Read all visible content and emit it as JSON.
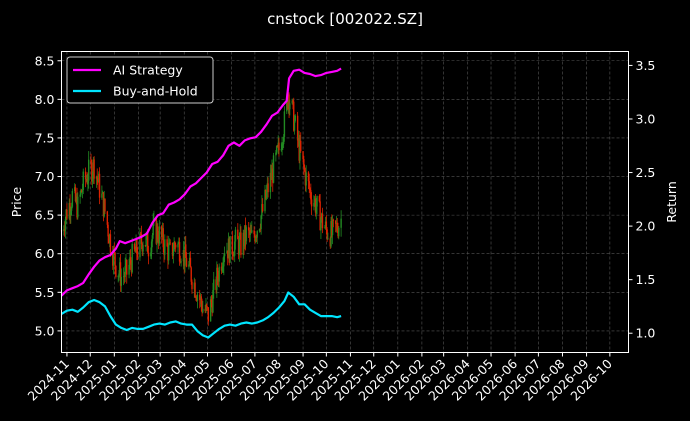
{
  "chart_data": {
    "type": "line",
    "title": "cnstock [002022.SZ]",
    "ylabel_left": "Price",
    "ylabel_right": "Return",
    "background": "#000000",
    "grid": true,
    "legend_position": "top-left",
    "x_ticks": [
      "2024-11",
      "2024-12",
      "2025-01",
      "2025-02",
      "2025-03",
      "2025-04",
      "2025-05",
      "2025-06",
      "2025-07",
      "2025-08",
      "2025-09",
      "2025-10",
      "2025-11",
      "2025-12",
      "2026-01",
      "2026-02",
      "2026-03",
      "2026-04",
      "2026-05",
      "2026-06",
      "2026-07",
      "2026-08",
      "2026-09",
      "2026-10"
    ],
    "x_range": [
      "2024-10-25",
      "2026-10-25"
    ],
    "y_left": {
      "range": [
        4.72,
        8.62
      ],
      "ticks": [
        "5.0",
        "5.5",
        "6.0",
        "6.5",
        "7.0",
        "7.5",
        "8.0",
        "8.5"
      ]
    },
    "y_right": {
      "range": [
        0.82,
        3.63
      ],
      "ticks": [
        "1.0",
        "1.5",
        "2.0",
        "2.5",
        "3.0",
        "3.5"
      ]
    },
    "colors": {
      "ai": "#ff00ff",
      "bh": "#00e5ff",
      "up": "#228B22",
      "down": "#DD2200"
    },
    "series": [
      {
        "name": "AI Strategy",
        "axis": "right",
        "points": [
          [
            "2024-10-25",
            1.35
          ],
          [
            "2024-11-01",
            1.4
          ],
          [
            "2024-11-08",
            1.42
          ],
          [
            "2024-11-15",
            1.44
          ],
          [
            "2024-11-22",
            1.47
          ],
          [
            "2024-11-29",
            1.55
          ],
          [
            "2024-12-06",
            1.62
          ],
          [
            "2024-12-13",
            1.68
          ],
          [
            "2024-12-20",
            1.71
          ],
          [
            "2024-12-27",
            1.73
          ],
          [
            "2025-01-03",
            1.79
          ],
          [
            "2025-01-08",
            1.86
          ],
          [
            "2025-01-15",
            1.84
          ],
          [
            "2025-01-22",
            1.86
          ],
          [
            "2025-01-29",
            1.88
          ],
          [
            "2025-02-05",
            1.9
          ],
          [
            "2025-02-12",
            1.93
          ],
          [
            "2025-02-19",
            2.03
          ],
          [
            "2025-02-26",
            2.1
          ],
          [
            "2025-03-05",
            2.12
          ],
          [
            "2025-03-12",
            2.2
          ],
          [
            "2025-03-19",
            2.22
          ],
          [
            "2025-03-26",
            2.25
          ],
          [
            "2025-04-02",
            2.3
          ],
          [
            "2025-04-09",
            2.37
          ],
          [
            "2025-04-16",
            2.4
          ],
          [
            "2025-04-23",
            2.45
          ],
          [
            "2025-04-30",
            2.5
          ],
          [
            "2025-05-07",
            2.58
          ],
          [
            "2025-05-14",
            2.6
          ],
          [
            "2025-05-21",
            2.66
          ],
          [
            "2025-05-28",
            2.75
          ],
          [
            "2025-06-04",
            2.78
          ],
          [
            "2025-06-11",
            2.75
          ],
          [
            "2025-06-18",
            2.8
          ],
          [
            "2025-06-25",
            2.82
          ],
          [
            "2025-07-02",
            2.83
          ],
          [
            "2025-07-09",
            2.88
          ],
          [
            "2025-07-16",
            2.95
          ],
          [
            "2025-07-23",
            3.03
          ],
          [
            "2025-07-30",
            3.06
          ],
          [
            "2025-08-06",
            3.13
          ],
          [
            "2025-08-11",
            3.17
          ],
          [
            "2025-08-14",
            3.38
          ],
          [
            "2025-08-20",
            3.45
          ],
          [
            "2025-08-27",
            3.46
          ],
          [
            "2025-09-03",
            3.43
          ],
          [
            "2025-09-10",
            3.42
          ],
          [
            "2025-09-17",
            3.4
          ],
          [
            "2025-09-24",
            3.41
          ],
          [
            "2025-10-01",
            3.43
          ],
          [
            "2025-10-08",
            3.44
          ],
          [
            "2025-10-15",
            3.45
          ],
          [
            "2025-10-20",
            3.47
          ]
        ]
      },
      {
        "name": "Buy-and-Hold",
        "axis": "right",
        "points": [
          [
            "2024-10-25",
            1.18
          ],
          [
            "2024-11-01",
            1.21
          ],
          [
            "2024-11-08",
            1.22
          ],
          [
            "2024-11-15",
            1.2
          ],
          [
            "2024-11-22",
            1.24
          ],
          [
            "2024-11-29",
            1.29
          ],
          [
            "2024-12-06",
            1.31
          ],
          [
            "2024-12-13",
            1.29
          ],
          [
            "2024-12-20",
            1.25
          ],
          [
            "2024-12-27",
            1.16
          ],
          [
            "2025-01-03",
            1.08
          ],
          [
            "2025-01-10",
            1.05
          ],
          [
            "2025-01-17",
            1.03
          ],
          [
            "2025-01-24",
            1.05
          ],
          [
            "2025-01-31",
            1.04
          ],
          [
            "2025-02-07",
            1.04
          ],
          [
            "2025-02-14",
            1.06
          ],
          [
            "2025-02-21",
            1.08
          ],
          [
            "2025-02-28",
            1.09
          ],
          [
            "2025-03-07",
            1.08
          ],
          [
            "2025-03-14",
            1.1
          ],
          [
            "2025-03-21",
            1.11
          ],
          [
            "2025-03-28",
            1.09
          ],
          [
            "2025-04-04",
            1.08
          ],
          [
            "2025-04-11",
            1.08
          ],
          [
            "2025-04-18",
            1.02
          ],
          [
            "2025-04-25",
            0.98
          ],
          [
            "2025-05-02",
            0.96
          ],
          [
            "2025-05-09",
            1.0
          ],
          [
            "2025-05-16",
            1.04
          ],
          [
            "2025-05-23",
            1.07
          ],
          [
            "2025-05-30",
            1.08
          ],
          [
            "2025-06-06",
            1.07
          ],
          [
            "2025-06-13",
            1.09
          ],
          [
            "2025-06-20",
            1.1
          ],
          [
            "2025-06-27",
            1.09
          ],
          [
            "2025-07-04",
            1.1
          ],
          [
            "2025-07-11",
            1.12
          ],
          [
            "2025-07-18",
            1.15
          ],
          [
            "2025-07-25",
            1.19
          ],
          [
            "2025-08-01",
            1.24
          ],
          [
            "2025-08-08",
            1.3
          ],
          [
            "2025-08-13",
            1.38
          ],
          [
            "2025-08-20",
            1.34
          ],
          [
            "2025-08-27",
            1.27
          ],
          [
            "2025-09-03",
            1.27
          ],
          [
            "2025-09-10",
            1.22
          ],
          [
            "2025-09-17",
            1.19
          ],
          [
            "2025-09-24",
            1.16
          ],
          [
            "2025-10-01",
            1.16
          ],
          [
            "2025-10-08",
            1.16
          ],
          [
            "2025-10-15",
            1.15
          ],
          [
            "2025-10-20",
            1.16
          ]
        ]
      },
      {
        "name": "Price",
        "axis": "left",
        "style": "candlestick",
        "points": [
          [
            "2024-10-25",
            6.3
          ],
          [
            "2024-11-01",
            6.55
          ],
          [
            "2024-11-08",
            6.75
          ],
          [
            "2024-11-15",
            6.6
          ],
          [
            "2024-11-22",
            6.9
          ],
          [
            "2024-11-29",
            7.05
          ],
          [
            "2024-12-06",
            7.15
          ],
          [
            "2024-12-13",
            6.85
          ],
          [
            "2024-12-20",
            6.55
          ],
          [
            "2024-12-27",
            6.15
          ],
          [
            "2025-01-03",
            5.85
          ],
          [
            "2025-01-10",
            5.7
          ],
          [
            "2025-01-17",
            5.75
          ],
          [
            "2025-01-24",
            5.95
          ],
          [
            "2025-01-31",
            6.05
          ],
          [
            "2025-02-07",
            6.2
          ],
          [
            "2025-02-14",
            6.1
          ],
          [
            "2025-02-21",
            6.3
          ],
          [
            "2025-02-28",
            6.25
          ],
          [
            "2025-03-07",
            6.1
          ],
          [
            "2025-03-14",
            6.0
          ],
          [
            "2025-03-21",
            6.15
          ],
          [
            "2025-03-28",
            6.05
          ],
          [
            "2025-04-04",
            5.9
          ],
          [
            "2025-04-11",
            5.7
          ],
          [
            "2025-04-18",
            5.5
          ],
          [
            "2025-04-25",
            5.3
          ],
          [
            "2025-05-02",
            5.2
          ],
          [
            "2025-05-09",
            5.5
          ],
          [
            "2025-05-16",
            5.8
          ],
          [
            "2025-05-23",
            6.1
          ],
          [
            "2025-05-30",
            6.05
          ],
          [
            "2025-06-06",
            6.15
          ],
          [
            "2025-06-13",
            6.1
          ],
          [
            "2025-06-20",
            6.25
          ],
          [
            "2025-06-27",
            6.2
          ],
          [
            "2025-07-04",
            6.35
          ],
          [
            "2025-07-11",
            6.55
          ],
          [
            "2025-07-18",
            6.85
          ],
          [
            "2025-07-25",
            7.1
          ],
          [
            "2025-08-01",
            7.35
          ],
          [
            "2025-08-08",
            7.7
          ],
          [
            "2025-08-13",
            8.1
          ],
          [
            "2025-08-20",
            7.75
          ],
          [
            "2025-08-27",
            7.35
          ],
          [
            "2025-09-03",
            7.05
          ],
          [
            "2025-09-10",
            6.8
          ],
          [
            "2025-09-17",
            6.65
          ],
          [
            "2025-09-24",
            6.45
          ],
          [
            "2025-10-01",
            6.3
          ],
          [
            "2025-10-08",
            6.25
          ],
          [
            "2025-10-15",
            6.35
          ],
          [
            "2025-10-20",
            6.45
          ]
        ]
      }
    ]
  }
}
